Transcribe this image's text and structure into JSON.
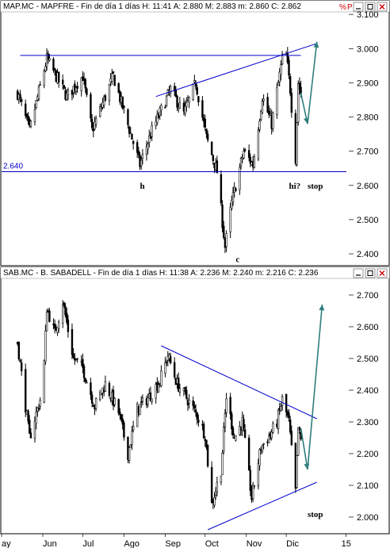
{
  "colors": {
    "candle": "#000000",
    "trendline": "#0000cc",
    "arrow": "#2e7d7d",
    "close_button": "#d00000",
    "panel_border": "#000000",
    "title_bg": "#ffffff"
  },
  "icons": {
    "window_buttons": [
      "minimize-icon",
      "maximize-icon",
      "close-icon"
    ],
    "scale_buttons": [
      "percent-icon",
      "p-icon"
    ]
  },
  "months": [
    "ay",
    "Jun",
    "Jul",
    "Ago",
    "Sep",
    "Oct",
    "Nov",
    "Dic",
    "15"
  ],
  "chart_data": [
    {
      "type": "candlestick",
      "title": "MAP.MC - MAPFRE - Fin de día 1 días H: 11:41 A: 2.880 M: 2.883 m: 2.860 C: 2.862",
      "y_ticks": [
        "3.100",
        "3.000",
        "2.900",
        "2.800",
        "2.700",
        "2.600",
        "2.500",
        "2.400"
      ],
      "ylim": [
        2.37,
        3.105
      ],
      "scale_buttons": [
        "%",
        "P"
      ],
      "levels": [
        {
          "label": "2.640",
          "y": 2.64
        }
      ],
      "trendlines": [
        {
          "from": [
            "2014-05-15",
            2.98
          ],
          "to": [
            "2014-12-12",
            2.98
          ]
        },
        {
          "from": [
            "2014-08-25",
            2.86
          ],
          "to": [
            "2014-12-24",
            3.015
          ]
        }
      ],
      "annotations": [
        {
          "text": "h",
          "date": "2014-08-13",
          "value": 2.6
        },
        {
          "text": "c",
          "date": "2014-10-24",
          "value": 2.385
        },
        {
          "text": "hi?",
          "date": "2014-12-03",
          "value": 2.6
        },
        {
          "text": "stop",
          "date": "2014-12-17",
          "value": 2.6
        }
      ],
      "projection": [
        [
          "2014-12-12",
          2.87
        ],
        [
          "2014-12-17",
          2.78
        ],
        [
          "2014-12-24",
          3.02
        ]
      ],
      "key_points": [
        [
          "2014-05-13",
          2.87
        ],
        [
          "2014-05-22",
          2.76
        ],
        [
          "2014-06-04",
          2.97
        ],
        [
          "2014-06-19",
          2.86
        ],
        [
          "2014-07-01",
          2.92
        ],
        [
          "2014-07-08",
          2.76
        ],
        [
          "2014-07-24",
          2.92
        ],
        [
          "2014-08-13",
          2.66
        ],
        [
          "2014-08-22",
          2.76
        ],
        [
          "2014-09-05",
          2.88
        ],
        [
          "2014-09-15",
          2.81
        ],
        [
          "2014-09-24",
          2.9
        ],
        [
          "2014-10-02",
          2.74
        ],
        [
          "2014-10-10",
          2.64
        ],
        [
          "2014-10-16",
          2.42
        ],
        [
          "2014-10-21",
          2.55
        ],
        [
          "2014-10-30",
          2.7
        ],
        [
          "2014-11-06",
          2.66
        ],
        [
          "2014-11-13",
          2.86
        ],
        [
          "2014-11-20",
          2.78
        ],
        [
          "2014-11-28",
          2.97
        ],
        [
          "2014-12-01",
          2.98
        ],
        [
          "2014-12-04",
          2.88
        ],
        [
          "2014-12-08",
          2.68
        ],
        [
          "2014-12-10",
          2.9
        ],
        [
          "2014-12-12",
          2.87
        ]
      ]
    },
    {
      "type": "candlestick",
      "title": "SAB.MC - B. SABADELL - Fin de día 1 días H: 11:38 A: 2.236 M: 2.240 m: 2.216 C: 2.236",
      "y_ticks": [
        "2.700",
        "2.600",
        "2.500",
        "2.400",
        "2.300",
        "2.200",
        "2.100",
        "2.000"
      ],
      "ylim": [
        1.95,
        2.75
      ],
      "scale_buttons": [
        "%",
        "P"
      ],
      "levels": [],
      "trendlines": [
        {
          "from": [
            "2014-08-29",
            2.54
          ],
          "to": [
            "2014-12-24",
            2.31
          ]
        },
        {
          "from": [
            "2014-10-03",
            1.96
          ],
          "to": [
            "2014-12-24",
            2.11
          ]
        }
      ],
      "annotations": [
        {
          "text": "stop",
          "date": "2014-12-17",
          "value": 2.01
        }
      ],
      "projection": [
        [
          "2014-12-12",
          2.28
        ],
        [
          "2014-12-17",
          2.15
        ],
        [
          "2014-12-28",
          2.67
        ]
      ],
      "key_points": [
        [
          "2014-05-13",
          2.55
        ],
        [
          "2014-05-22",
          2.25
        ],
        [
          "2014-06-01",
          2.4
        ],
        [
          "2014-06-04",
          2.66
        ],
        [
          "2014-06-10",
          2.58
        ],
        [
          "2014-06-16",
          2.68
        ],
        [
          "2014-06-24",
          2.5
        ],
        [
          "2014-07-01",
          2.47
        ],
        [
          "2014-07-10",
          2.35
        ],
        [
          "2014-07-18",
          2.42
        ],
        [
          "2014-07-28",
          2.33
        ],
        [
          "2014-08-04",
          2.2
        ],
        [
          "2014-08-11",
          2.34
        ],
        [
          "2014-08-20",
          2.38
        ],
        [
          "2014-08-28",
          2.43
        ],
        [
          "2014-09-03",
          2.51
        ],
        [
          "2014-09-10",
          2.42
        ],
        [
          "2014-09-18",
          2.37
        ],
        [
          "2014-09-25",
          2.32
        ],
        [
          "2014-10-01",
          2.26
        ],
        [
          "2014-10-06",
          2.04
        ],
        [
          "2014-10-13",
          2.15
        ],
        [
          "2014-10-17",
          2.38
        ],
        [
          "2014-10-23",
          2.25
        ],
        [
          "2014-10-29",
          2.3
        ],
        [
          "2014-11-05",
          2.06
        ],
        [
          "2014-11-12",
          2.22
        ],
        [
          "2014-11-19",
          2.26
        ],
        [
          "2014-11-24",
          2.3
        ],
        [
          "2014-11-28",
          2.37
        ],
        [
          "2014-12-03",
          2.3
        ],
        [
          "2014-12-08",
          2.08
        ],
        [
          "2014-12-10",
          2.28
        ],
        [
          "2014-12-12",
          2.24
        ]
      ]
    }
  ]
}
